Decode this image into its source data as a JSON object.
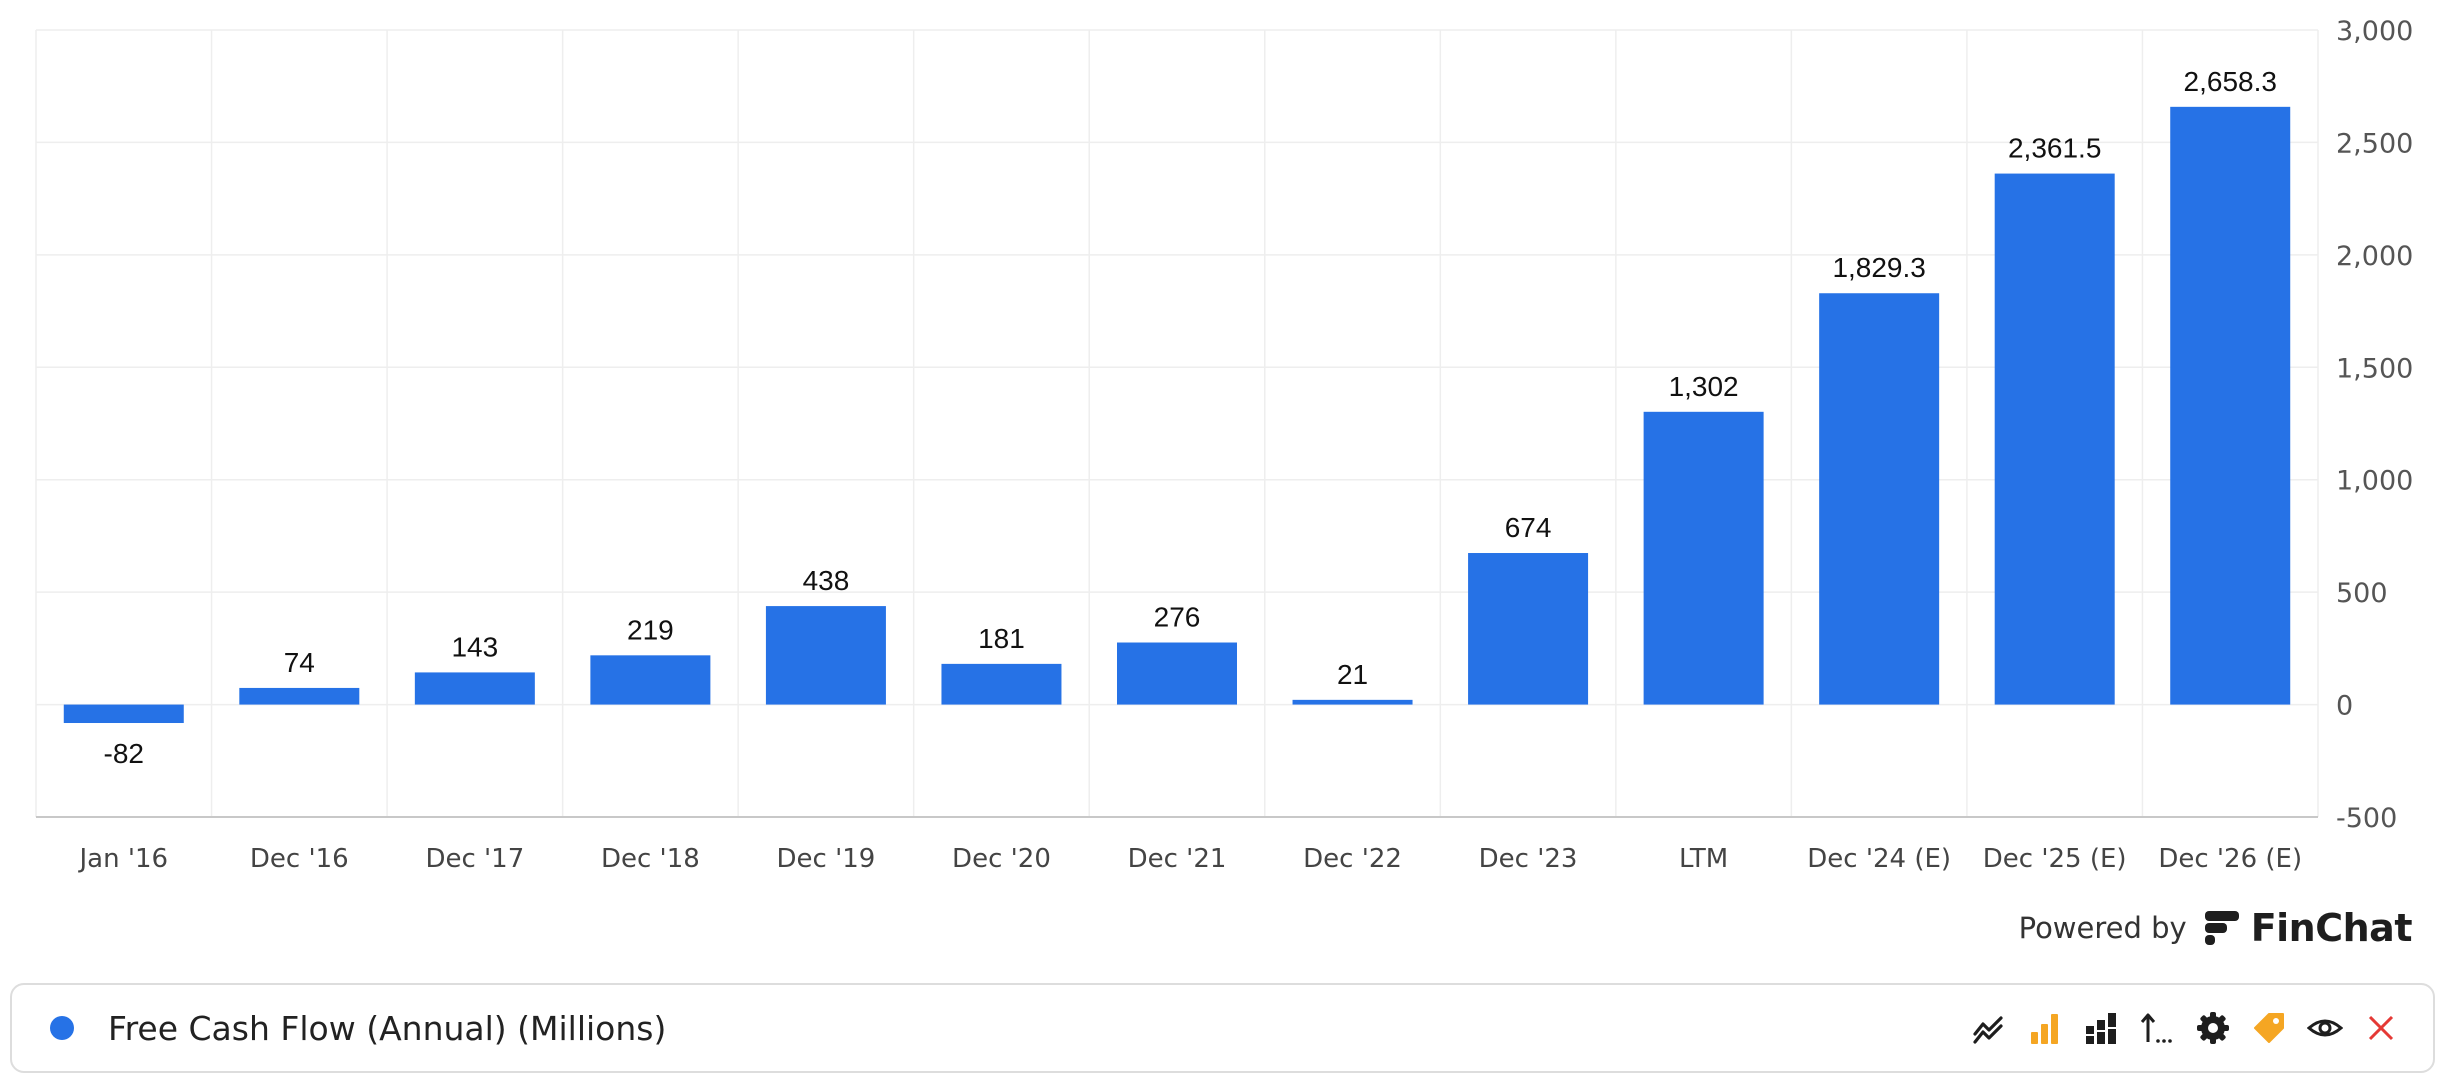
{
  "chart_data": {
    "type": "bar",
    "categories": [
      "Jan '16",
      "Dec '16",
      "Dec '17",
      "Dec '18",
      "Dec '19",
      "Dec '20",
      "Dec '21",
      "Dec '22",
      "Dec '23",
      "LTM",
      "Dec '24 (E)",
      "Dec '25 (E)",
      "Dec '26 (E)"
    ],
    "values": [
      -82,
      74,
      143,
      219,
      438,
      181,
      276,
      21,
      674,
      1302,
      1829.3,
      2361.5,
      2658.3
    ],
    "value_labels": [
      "-82",
      "74",
      "143",
      "219",
      "438",
      "181",
      "276",
      "21",
      "674",
      "1,302",
      "1,829.3",
      "2,361.5",
      "2,658.3"
    ],
    "series": [
      {
        "name": "Free Cash Flow (Annual) (Millions)"
      }
    ],
    "ylim": [
      -500,
      3000
    ],
    "yticks": [
      -500,
      0,
      500,
      1000,
      1500,
      2000,
      2500,
      3000
    ],
    "ytick_labels": [
      "-500",
      "0",
      "500",
      "1,000",
      "1,500",
      "2,000",
      "2,500",
      "3,000"
    ],
    "y_axis_position": "right",
    "grid": true,
    "bar_color": "#2672E6"
  },
  "footer": {
    "powered_by": "Powered by",
    "brand": "FinChat"
  },
  "legend": {
    "label": "Free Cash Flow (Annual) (Millions)",
    "color": "#2672E6"
  },
  "toolbar": {
    "icons": [
      "line-chart-icon",
      "bar-chart-icon",
      "stacked-bar-icon",
      "sort-icon",
      "gear-icon",
      "tag-icon",
      "eye-icon",
      "close-icon"
    ],
    "accent_color": "#F5A623",
    "close_color": "#E53935"
  }
}
